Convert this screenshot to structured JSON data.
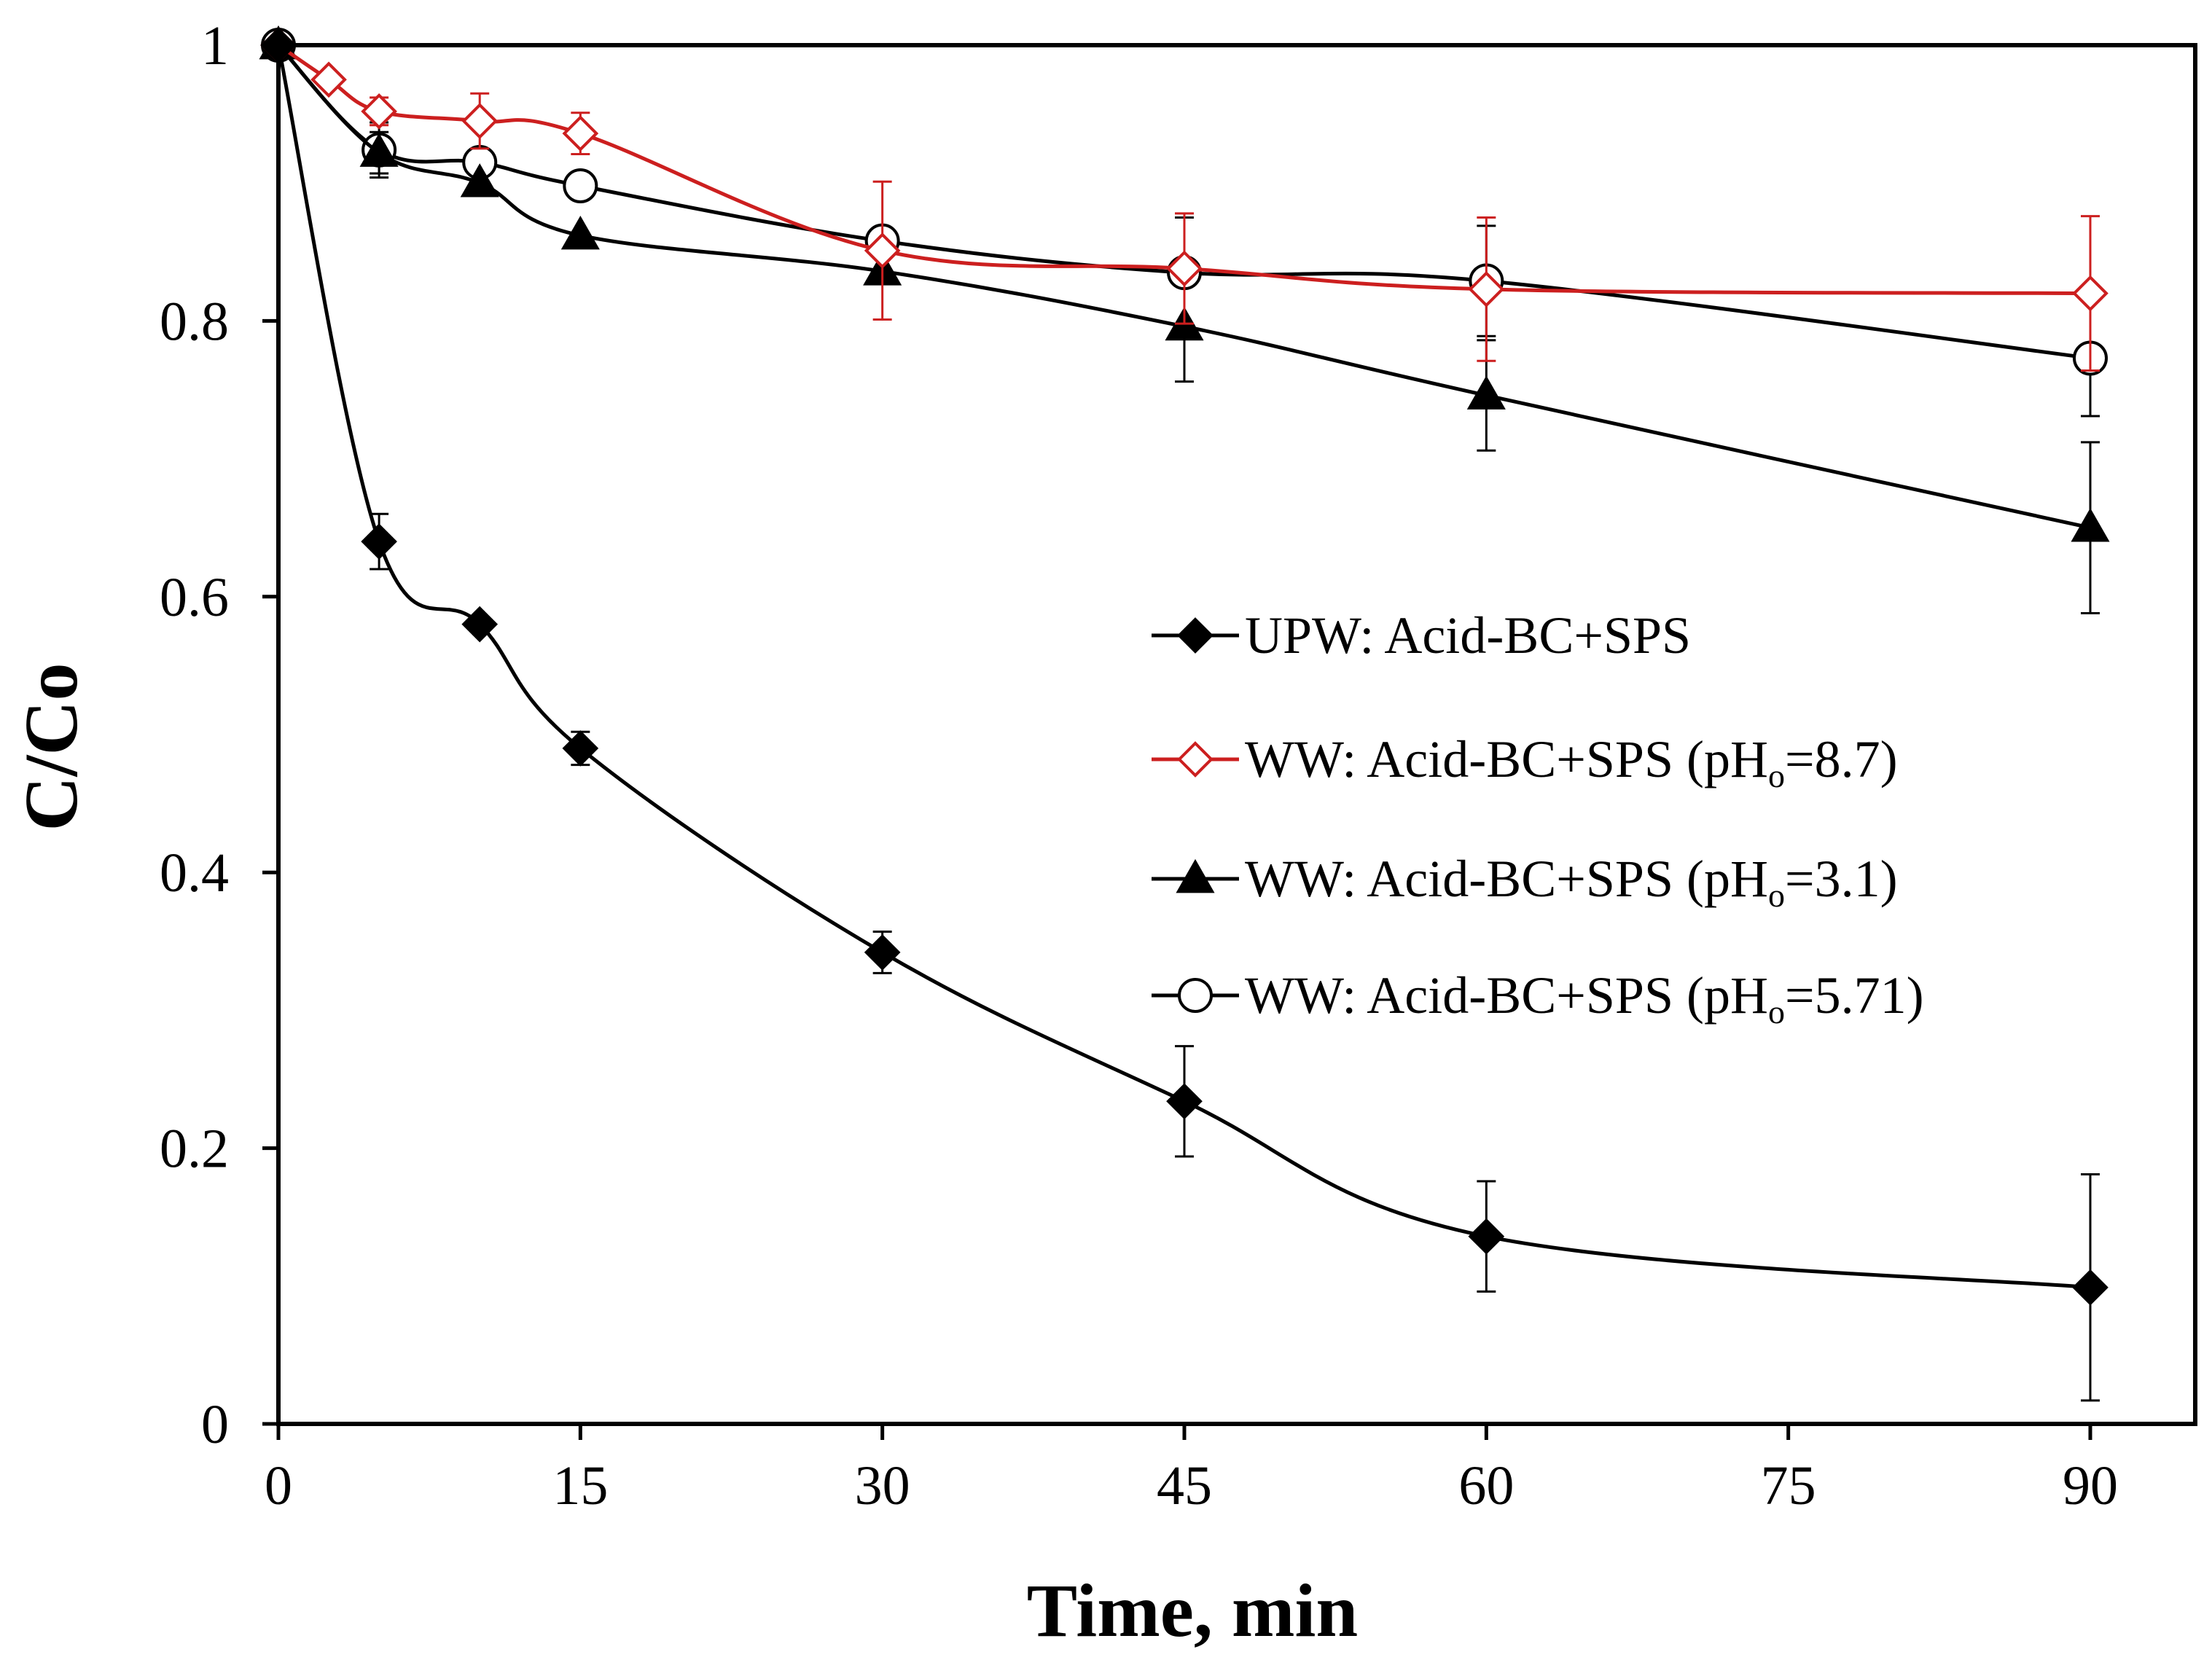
{
  "chart_data": {
    "type": "line",
    "title": "",
    "xlabel": "Time, min",
    "ylabel": "C/Co",
    "xlim": [
      0,
      95
    ],
    "ylim": [
      0,
      1
    ],
    "xticks": [
      0,
      15,
      30,
      45,
      60,
      75,
      90
    ],
    "yticks": [
      0,
      0.2,
      0.4,
      0.6,
      0.8,
      1
    ],
    "ytick_labels": [
      "0",
      "0.2",
      "0.4",
      "0.6",
      "0.8",
      "1"
    ],
    "grid": false,
    "legend_position": "center-right",
    "series": [
      {
        "name": "UPW: Acid-BC+SPS",
        "legend_text": "UPW: Acid-BC+SPS",
        "legend_sub": "",
        "legend_suffix": "",
        "color": "#000000",
        "marker": "diamond",
        "filled": true,
        "x": [
          0,
          5,
          10,
          15,
          30,
          45,
          60,
          90
        ],
        "y": [
          1.0,
          0.64,
          0.58,
          0.49,
          0.342,
          0.234,
          0.136,
          0.099
        ],
        "err": [
          0,
          0.02,
          0,
          0.012,
          0.015,
          0.04,
          0.04,
          0.082
        ]
      },
      {
        "name": "WW: Acid-BC+SPS (pHo=8.7)",
        "legend_text": "WW: Acid-BC+SPS (pH",
        "legend_sub": "o",
        "legend_suffix": "=8.7)",
        "color": "#cc1f1f",
        "marker": "diamond",
        "filled": false,
        "x": [
          0,
          2.5,
          5,
          10,
          15,
          30,
          45,
          60,
          90
        ],
        "y": [
          1.0,
          0.975,
          0.952,
          0.945,
          0.936,
          0.851,
          0.838,
          0.823,
          0.82
        ],
        "err": [
          0,
          0,
          0.01,
          0.02,
          0.015,
          0.05,
          0.04,
          0.052,
          0.056
        ]
      },
      {
        "name": "WW: Acid-BC+SPS (pHo=3.1)",
        "legend_text": "WW: Acid-BC+SPS (pH",
        "legend_sub": "o",
        "legend_suffix": "=3.1)",
        "color": "#000000",
        "marker": "triangle",
        "filled": true,
        "x": [
          0,
          5,
          10,
          15,
          30,
          45,
          60,
          90
        ],
        "y": [
          1.0,
          0.922,
          0.9,
          0.862,
          0.836,
          0.796,
          0.746,
          0.65
        ],
        "err": [
          0,
          0.015,
          0,
          0,
          0,
          0.04,
          0.04,
          0.062
        ]
      },
      {
        "name": "WW: Acid-BC+SPS (pHo=5.71)",
        "legend_text": "WW: Acid-BC+SPS (pH",
        "legend_sub": "o",
        "legend_suffix": "=5.71)",
        "color": "#000000",
        "marker": "circle",
        "filled": false,
        "x": [
          0,
          5,
          10,
          15,
          30,
          45,
          60,
          90
        ],
        "y": [
          1.0,
          0.924,
          0.915,
          0.898,
          0.858,
          0.835,
          0.829,
          0.773
        ],
        "err": [
          0,
          0.02,
          0,
          0,
          0,
          0.04,
          0.04,
          0.042
        ]
      }
    ]
  }
}
